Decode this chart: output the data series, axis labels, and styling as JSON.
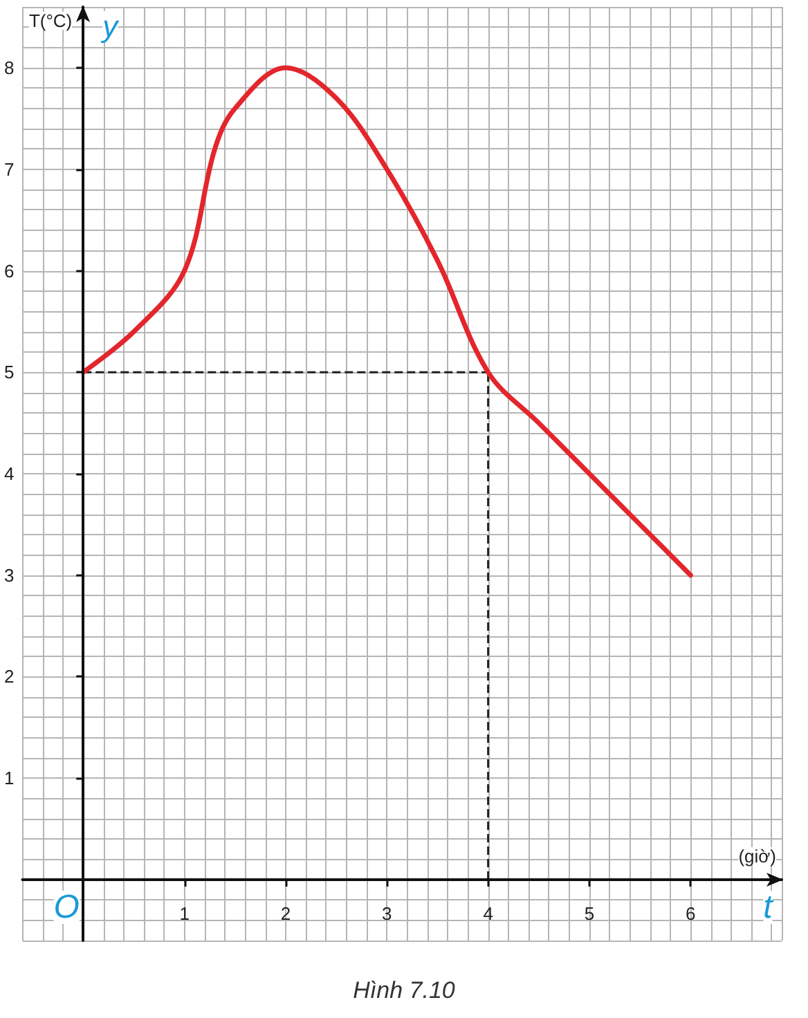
{
  "chart_data": {
    "type": "line",
    "ylabel": "T(°C)",
    "xlabel": "(giờ)",
    "annotations": [
      "y",
      "t",
      "O",
      "Hình 7.10"
    ],
    "x": [
      0,
      0.5,
      1,
      1.3,
      1.5,
      2,
      2.5,
      3,
      3.5,
      4,
      4.5,
      5,
      5.5,
      6
    ],
    "series": [
      {
        "color": "#e3262c",
        "values": [
          5,
          5.4,
          6,
          7.2,
          7.6,
          8,
          7.7,
          7,
          6.1,
          5,
          4.5,
          4,
          3.5,
          3
        ]
      }
    ],
    "xlim": [
      -0.6,
      6.9
    ],
    "ylim": [
      -0.6,
      8.6
    ],
    "xticks": [
      1,
      2,
      3,
      4,
      5,
      6
    ],
    "yticks": [
      1,
      2,
      3,
      4,
      5,
      6,
      7,
      8
    ],
    "ref_lines": [
      {
        "axis": "y",
        "value": 5,
        "line_style": "dashed",
        "color": "#222222"
      },
      {
        "axis": "x",
        "value": 4,
        "line_style": "dashed",
        "color": "#222222"
      }
    ],
    "grid": true,
    "marker": "none",
    "line_style": "solid"
  }
}
